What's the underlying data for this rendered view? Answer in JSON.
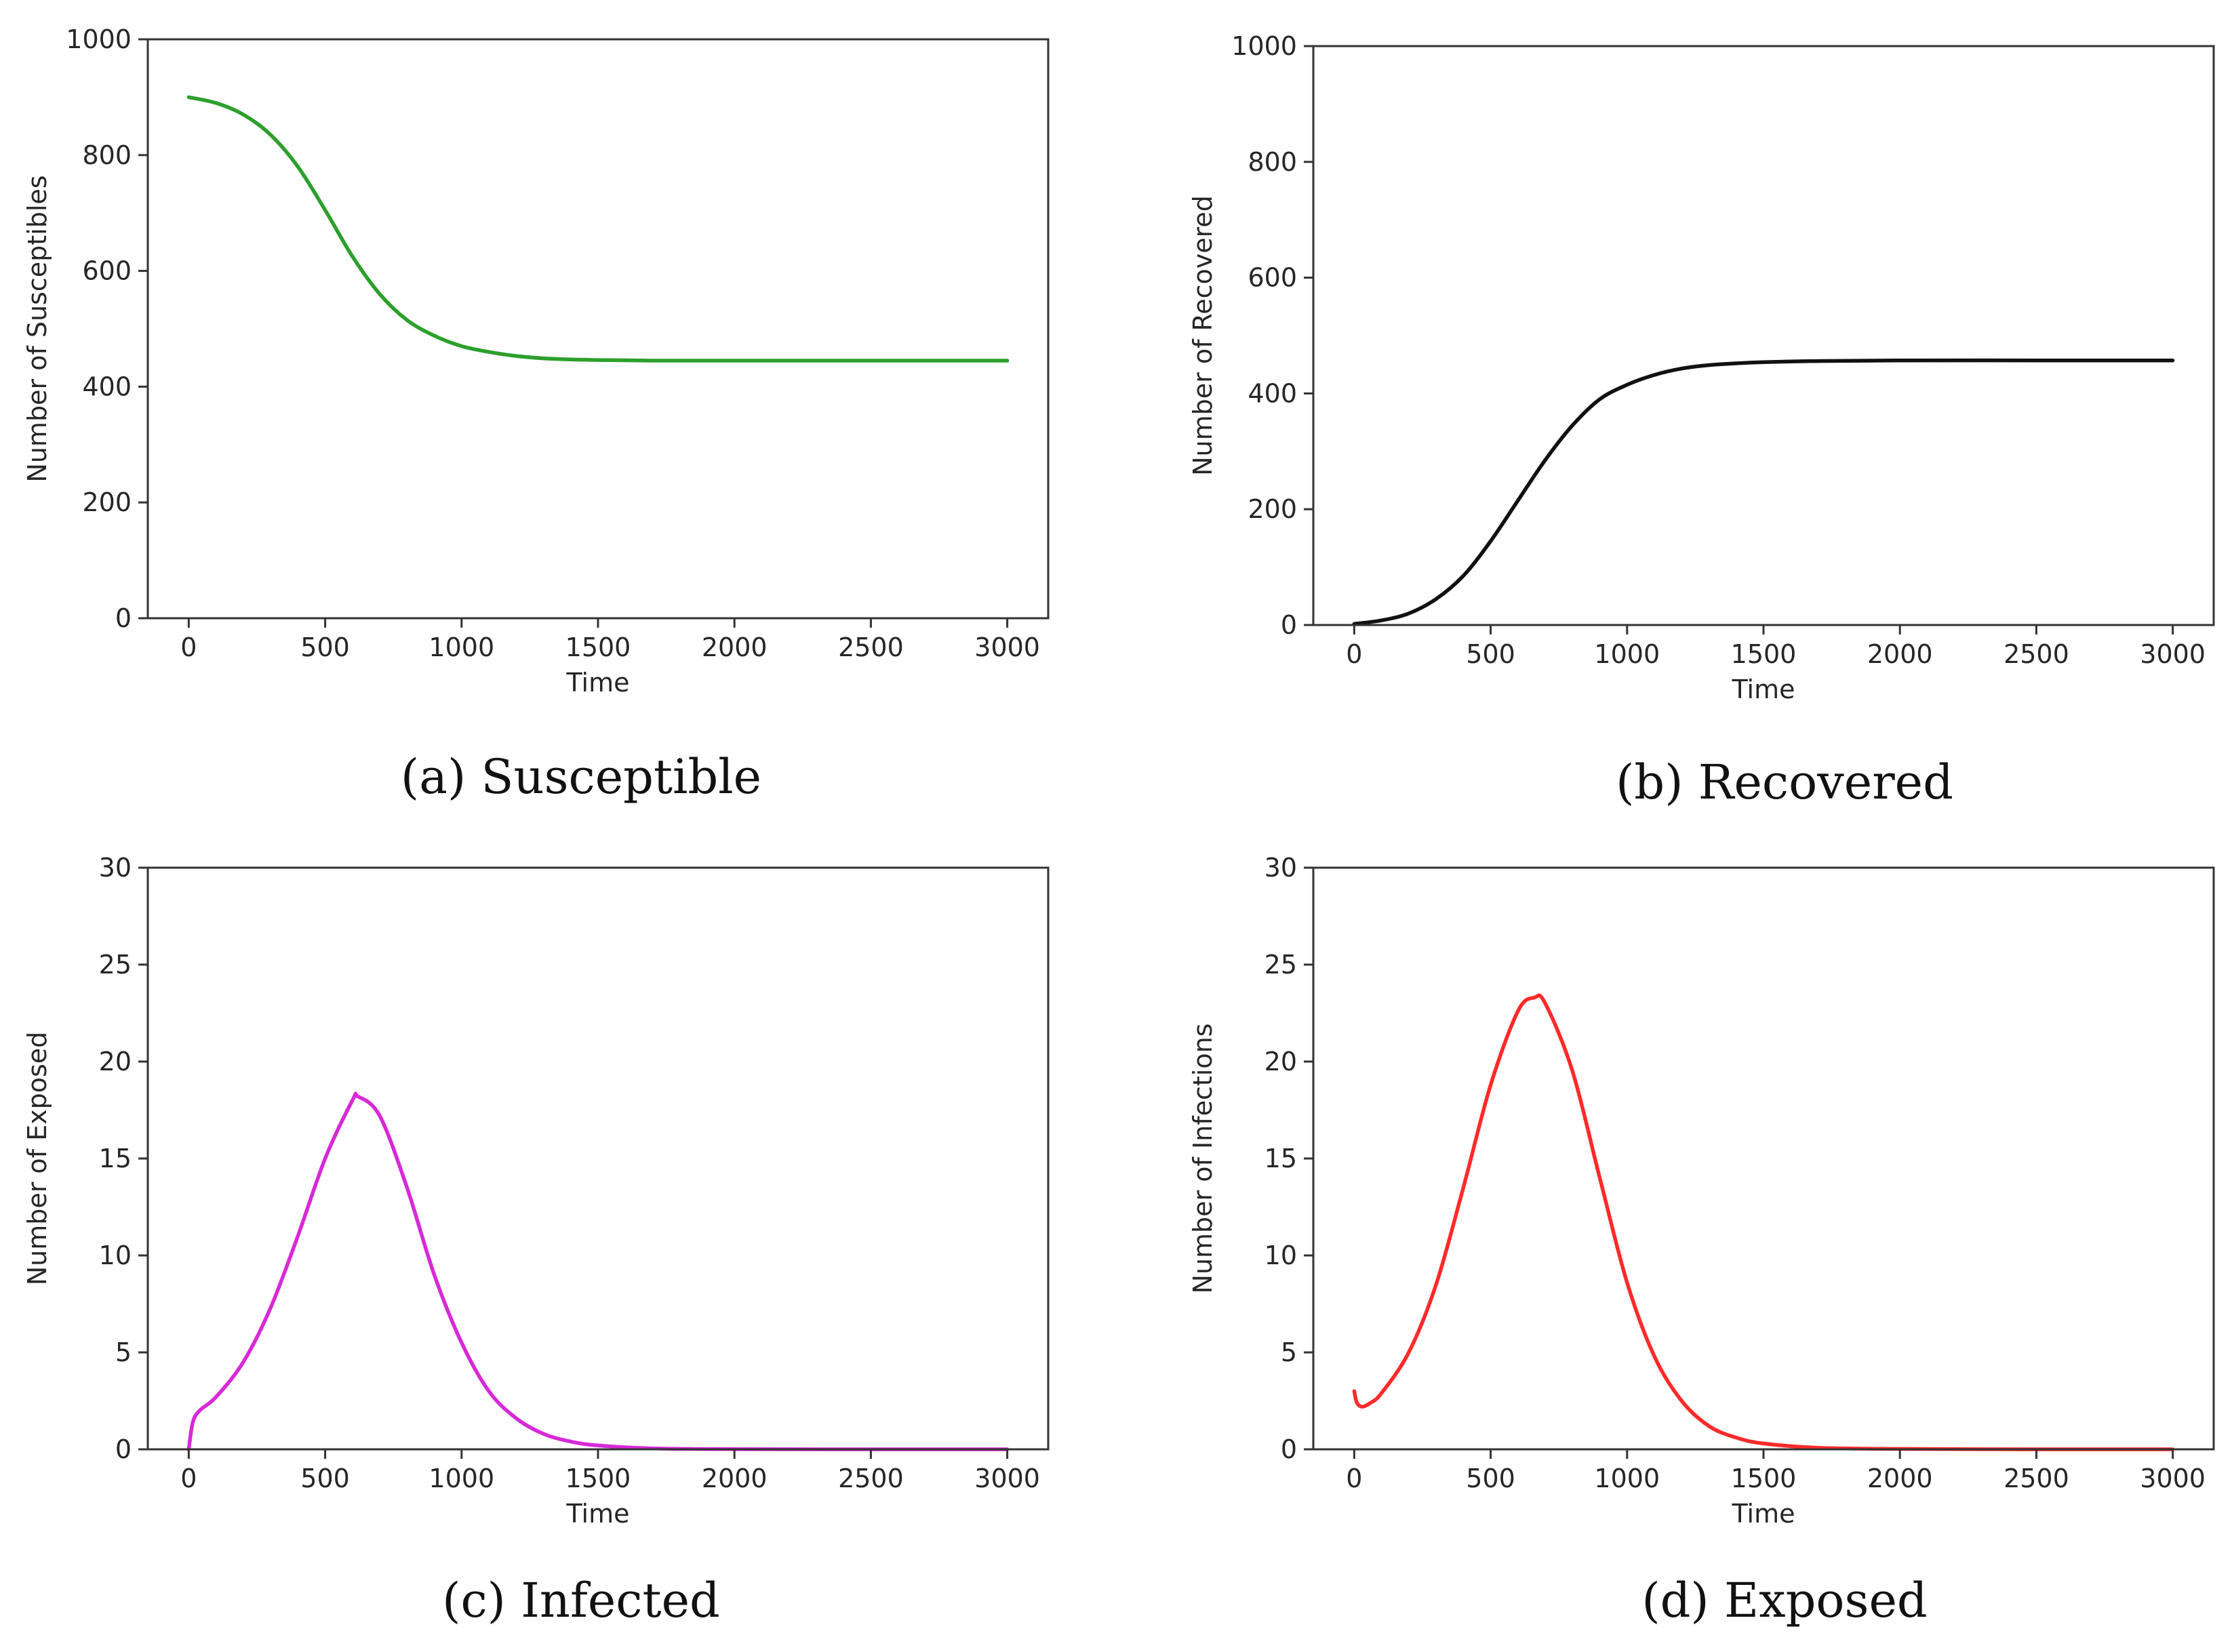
{
  "chart_data": [
    {
      "type": "line",
      "caption": "(a)  Susceptible",
      "xlabel": "Time",
      "ylabel": "Number of Susceptibles",
      "xlim": [
        -150,
        3150
      ],
      "ylim": [
        0,
        1000
      ],
      "xticks": [
        0,
        500,
        1000,
        1500,
        2000,
        2500,
        3000
      ],
      "xtick_labels": [
        "0",
        "500",
        "1000",
        "1500",
        "2000",
        "2500",
        "3000"
      ],
      "yticks": [
        0,
        200,
        400,
        600,
        800,
        1000
      ],
      "ytick_labels": [
        "0",
        "200",
        "400",
        "600",
        "800",
        "1000"
      ],
      "color": "#2ca02c",
      "series": [
        {
          "name": "Susceptible",
          "x": [
            0,
            100,
            200,
            300,
            400,
            500,
            600,
            700,
            800,
            900,
            1000,
            1100,
            1200,
            1300,
            1400,
            1500,
            1700,
            2000,
            2500,
            3000
          ],
          "y": [
            900,
            890,
            870,
            835,
            780,
            705,
            625,
            560,
            515,
            488,
            470,
            460,
            453,
            449,
            447,
            446,
            445,
            445,
            445,
            445
          ]
        }
      ]
    },
    {
      "type": "line",
      "caption": "(b)  Recovered",
      "xlabel": "Time",
      "ylabel": "Number of Recovered",
      "xlim": [
        -150,
        3150
      ],
      "ylim": [
        0,
        1000
      ],
      "xticks": [
        0,
        500,
        1000,
        1500,
        2000,
        2500,
        3000
      ],
      "xtick_labels": [
        "0",
        "500",
        "1000",
        "1500",
        "2000",
        "2500",
        "3000"
      ],
      "yticks": [
        0,
        200,
        400,
        600,
        800,
        1000
      ],
      "ytick_labels": [
        "0",
        "200",
        "400",
        "600",
        "800",
        "1000"
      ],
      "color": "#111111",
      "series": [
        {
          "name": "Recovered",
          "x": [
            0,
            100,
            200,
            300,
            400,
            500,
            600,
            700,
            800,
            900,
            1000,
            1100,
            1200,
            1300,
            1400,
            1500,
            1700,
            2000,
            2500,
            3000
          ],
          "y": [
            2,
            8,
            20,
            45,
            85,
            145,
            215,
            285,
            345,
            390,
            415,
            432,
            443,
            449,
            452,
            454,
            456,
            457,
            457,
            457
          ]
        }
      ]
    },
    {
      "type": "line",
      "caption": "(c)  Infected",
      "xlabel": "Time",
      "ylabel": "Number of Exposed",
      "xlim": [
        -150,
        3150
      ],
      "ylim": [
        0,
        30
      ],
      "xticks": [
        0,
        500,
        1000,
        1500,
        2000,
        2500,
        3000
      ],
      "xtick_labels": [
        "0",
        "500",
        "1000",
        "1500",
        "2000",
        "2500",
        "3000"
      ],
      "yticks": [
        0,
        5,
        10,
        15,
        20,
        25,
        30
      ],
      "ytick_labels": [
        "0",
        "5",
        "10",
        "15",
        "20",
        "25",
        "30"
      ],
      "color": "#d62ad6",
      "series": [
        {
          "name": "Infected",
          "x": [
            0,
            15,
            40,
            100,
            200,
            300,
            400,
            500,
            600,
            620,
            700,
            800,
            900,
            1000,
            1100,
            1200,
            1300,
            1400,
            1500,
            1700,
            2000,
            2500,
            3000
          ],
          "y": [
            0,
            1.4,
            2.0,
            2.7,
            4.5,
            7.3,
            11.0,
            15.0,
            18.0,
            18.2,
            17.2,
            13.5,
            9.0,
            5.5,
            3.0,
            1.6,
            0.8,
            0.4,
            0.2,
            0.05,
            0.01,
            0,
            0
          ]
        }
      ]
    },
    {
      "type": "line",
      "caption": "(d)  Exposed",
      "xlabel": "Time",
      "ylabel": "Number of Infections",
      "xlim": [
        -150,
        3150
      ],
      "ylim": [
        0,
        30
      ],
      "xticks": [
        0,
        500,
        1000,
        1500,
        2000,
        2500,
        3000
      ],
      "xtick_labels": [
        "0",
        "500",
        "1000",
        "1500",
        "2000",
        "2500",
        "3000"
      ],
      "yticks": [
        0,
        5,
        10,
        15,
        20,
        25,
        30
      ],
      "ytick_labels": [
        "0",
        "5",
        "10",
        "15",
        "20",
        "25",
        "30"
      ],
      "color": "#ff2a2a",
      "series": [
        {
          "name": "Exposed",
          "x": [
            0,
            10,
            30,
            60,
            100,
            200,
            300,
            400,
            500,
            600,
            660,
            700,
            800,
            900,
            1000,
            1100,
            1200,
            1300,
            1400,
            1500,
            1700,
            2000,
            2500,
            3000
          ],
          "y": [
            3.0,
            2.4,
            2.2,
            2.4,
            2.9,
            5.0,
            8.5,
            13.5,
            18.8,
            22.6,
            23.3,
            23.0,
            19.5,
            14.0,
            8.6,
            4.8,
            2.5,
            1.2,
            0.6,
            0.3,
            0.08,
            0.02,
            0,
            0
          ]
        }
      ]
    }
  ]
}
